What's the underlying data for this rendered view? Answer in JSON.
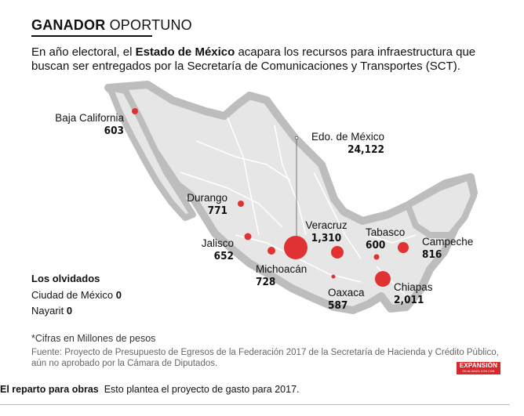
{
  "title": {
    "bold": "GANADOR",
    "rest": "OPORTUNO"
  },
  "intro": {
    "pre": "En año electoral, el ",
    "bold": "Estado de México",
    "post": " acapara los recursos para infraestructura que buscan ser entregados por la Secretaría de Comunicaciones y Transportes (SCT)."
  },
  "states": [
    {
      "id": "baja-california",
      "name": "Baja California",
      "value": "603"
    },
    {
      "id": "edo-mexico",
      "name": "Edo. de México",
      "value": "24,122"
    },
    {
      "id": "durango",
      "name": "Durango",
      "value": "771"
    },
    {
      "id": "veracruz",
      "name": "Veracruz",
      "value": "1,310"
    },
    {
      "id": "tabasco",
      "name": "Tabasco",
      "value": "600"
    },
    {
      "id": "campeche",
      "name": "Campeche",
      "value": "816"
    },
    {
      "id": "jalisco",
      "name": "Jalisco",
      "value": "652"
    },
    {
      "id": "michoacan",
      "name": "Michoacán",
      "value": "728"
    },
    {
      "id": "oaxaca",
      "name": "Oaxaca",
      "value": "587"
    },
    {
      "id": "chiapas",
      "name": "Chiapas",
      "value": "2,011"
    }
  ],
  "forgotten": {
    "heading": "Los olvidados",
    "rows": [
      {
        "name": "Ciudad de México",
        "value": "0"
      },
      {
        "name": "Nayarit",
        "value": "0"
      }
    ]
  },
  "note": "*Cifras en Millones de pesos",
  "source": "Fuente: Proyecto de Presupuesto de Egresos de la Federación 2017 de la Secretaría de Hacienda y Crédito Público, aún no aprobado por la Cámara de Diputados.",
  "logo": {
    "text": "EXPANSIÓN",
    "sub": "EN ALIANZA CON CNN"
  },
  "caption": {
    "bold": "El reparto para obras",
    "rest": "Esto plantea el proyecto de gasto para 2017."
  },
  "colors": {
    "bubble": "#e03232",
    "land": "#e6e6e6",
    "border": "#bdbdbd",
    "logo": "#d8282b"
  }
}
